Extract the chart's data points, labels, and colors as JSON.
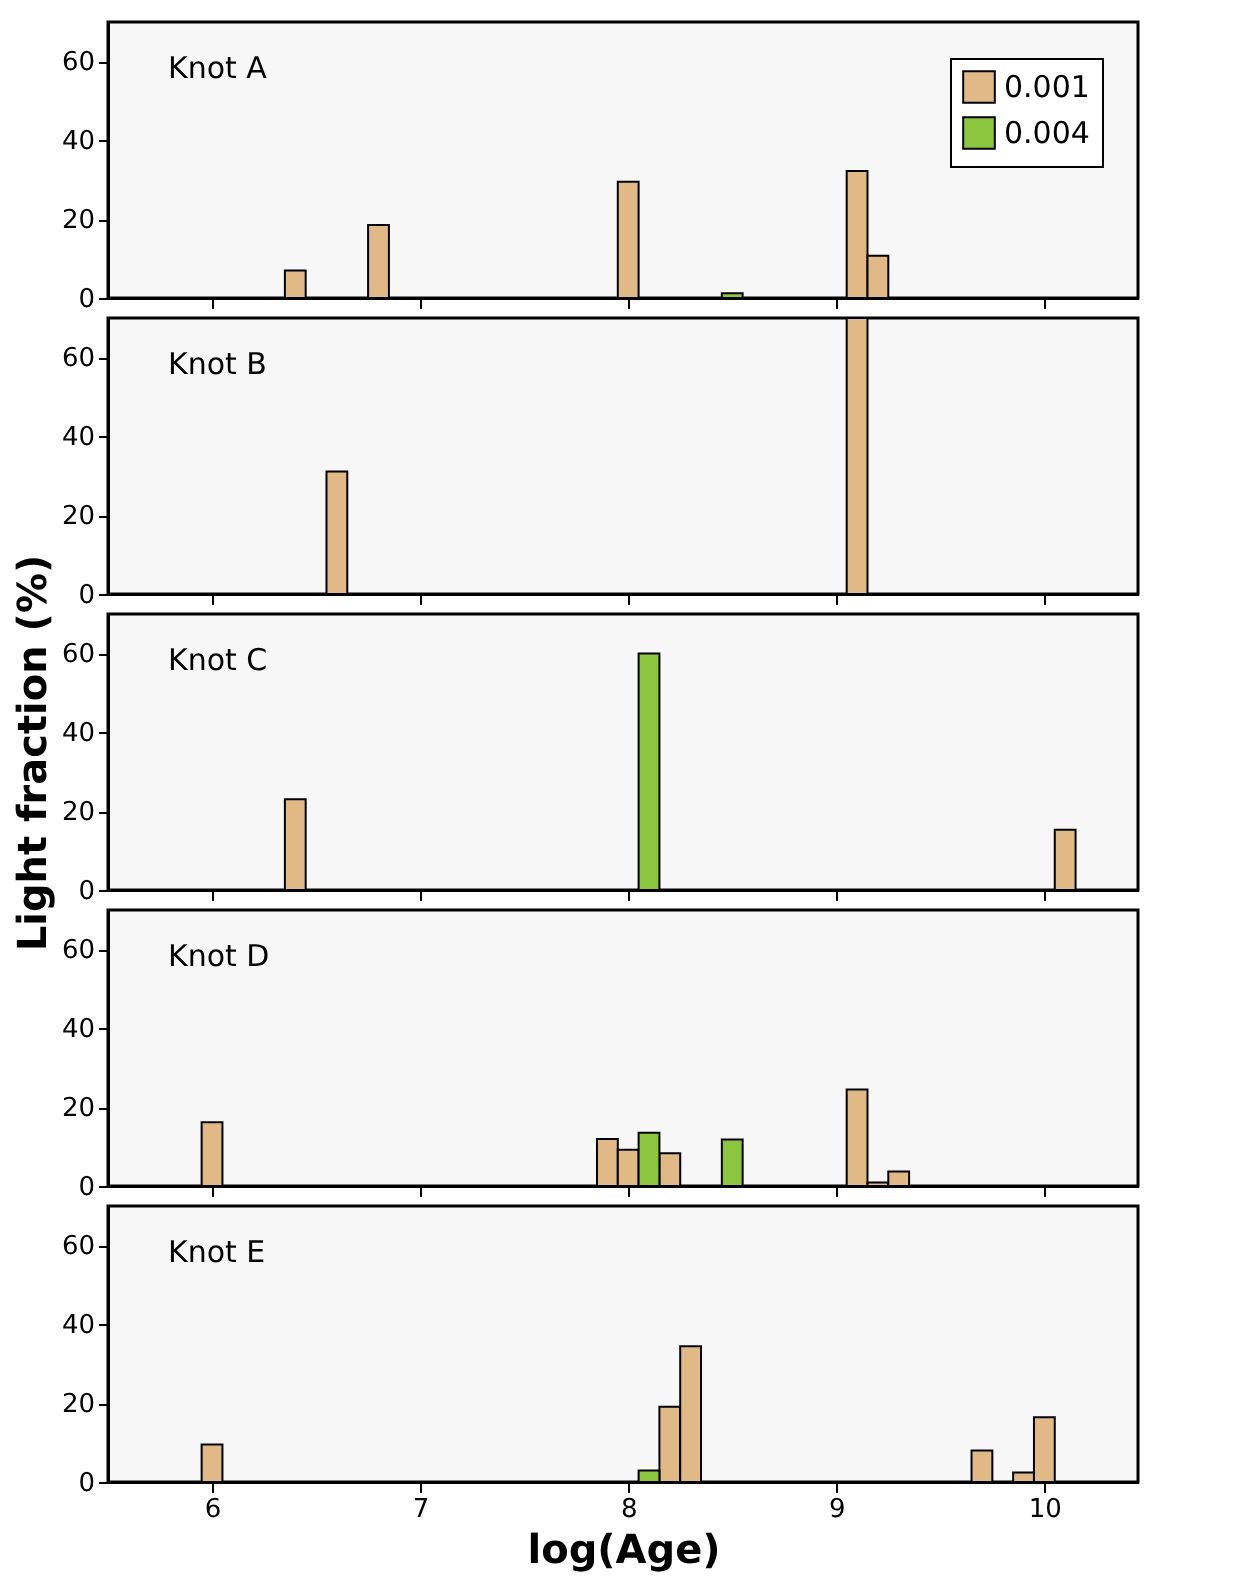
{
  "chart_data": [
    {
      "type": "bar",
      "annotations": [
        "Knot A"
      ],
      "xlim": [
        5.5,
        10.45
      ],
      "xticks": [
        6,
        7,
        8,
        9,
        10
      ],
      "ylim": [
        0,
        70
      ],
      "yticks": [
        0,
        20,
        40,
        60
      ],
      "tick_labels": "y",
      "legend": "top right",
      "grid": false,
      "series": [
        {
          "name": "0.001",
          "color": "#e0b986",
          "x": [
            6.4,
            6.8,
            8.0,
            9.1,
            9.2
          ],
          "values": [
            7,
            18.5,
            29.5,
            32.2,
            10.7
          ]
        },
        {
          "name": "0.004",
          "color": "#8cc63f",
          "x": [
            8.5
          ],
          "values": [
            1.2
          ]
        }
      ]
    },
    {
      "type": "bar",
      "annotations": [
        "Knot B"
      ],
      "xlim": [
        5.5,
        10.45
      ],
      "xticks": [
        6,
        7,
        8,
        9,
        10
      ],
      "ylim": [
        0,
        70
      ],
      "yticks": [
        0,
        20,
        40,
        60
      ],
      "tick_labels": "y",
      "grid": false,
      "series": [
        {
          "color": "#e0b986",
          "x": [
            6.6,
            9.1
          ],
          "values": [
            31.1,
            70
          ]
        }
      ]
    },
    {
      "type": "bar",
      "annotations": [
        "Knot C"
      ],
      "ylabel": "Light fraction (%)",
      "xlim": [
        5.5,
        10.45
      ],
      "xticks": [
        6,
        7,
        8,
        9,
        10
      ],
      "ylim": [
        0,
        70
      ],
      "yticks": [
        0,
        20,
        40,
        60
      ],
      "tick_labels": "y",
      "grid": false,
      "series": [
        {
          "color": "#e0b986",
          "x": [
            6.4,
            10.1
          ],
          "values": [
            23,
            15.3
          ]
        },
        {
          "color": "#8cc63f",
          "x": [
            8.1
          ],
          "values": [
            60
          ]
        }
      ]
    },
    {
      "type": "bar",
      "annotations": [
        "Knot D"
      ],
      "xlim": [
        5.5,
        10.45
      ],
      "xticks": [
        6,
        7,
        8,
        9,
        10
      ],
      "ylim": [
        0,
        70
      ],
      "yticks": [
        0,
        20,
        40,
        60
      ],
      "tick_labels": "y",
      "grid": false,
      "series": [
        {
          "color": "#e0b986",
          "x": [
            6.0,
            7.9,
            8.0,
            8.2,
            9.1,
            9.2,
            9.3
          ],
          "values": [
            16.2,
            11.9,
            9.2,
            8.3,
            24.5,
            0.9,
            3.7
          ]
        },
        {
          "color": "#8cc63f",
          "x": [
            8.1,
            8.5
          ],
          "values": [
            13.5,
            11.8
          ]
        }
      ]
    },
    {
      "type": "bar",
      "annotations": [
        "Knot E"
      ],
      "xlabel": "log(Age)",
      "xlim": [
        5.5,
        10.45
      ],
      "xticks": [
        6,
        7,
        8,
        9,
        10
      ],
      "ylim": [
        0,
        70
      ],
      "yticks": [
        0,
        20,
        40,
        60
      ],
      "grid": false,
      "series": [
        {
          "color": "#e0b986",
          "x": [
            6.0,
            8.2,
            8.3,
            9.7,
            9.9,
            10.0
          ],
          "values": [
            9.5,
            19.1,
            34.4,
            8,
            2.4,
            16.4
          ]
        },
        {
          "color": "#8cc63f",
          "x": [
            8.1
          ],
          "values": [
            2.9
          ]
        }
      ]
    }
  ]
}
